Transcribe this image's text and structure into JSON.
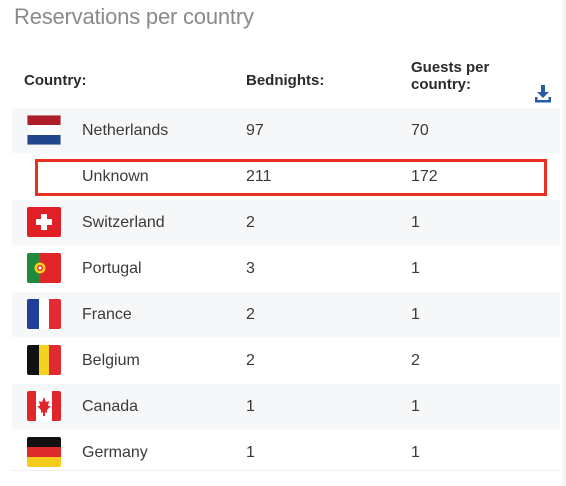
{
  "page": {
    "title": "Reservations per country"
  },
  "table": {
    "headers": {
      "country": "Country:",
      "bednights": "Bednights:",
      "guests": "Guests per country:"
    },
    "rows": [
      {
        "country": "Netherlands",
        "flag": "netherlands-flag-icon",
        "bednights": "97",
        "guests": "70"
      },
      {
        "country": "Unknown",
        "flag": "",
        "bednights": "211",
        "guests": "172"
      },
      {
        "country": "Switzerland",
        "flag": "switzerland-flag-icon",
        "bednights": "2",
        "guests": "1"
      },
      {
        "country": "Portugal",
        "flag": "portugal-flag-icon",
        "bednights": "3",
        "guests": "1"
      },
      {
        "country": "France",
        "flag": "france-flag-icon",
        "bednights": "2",
        "guests": "1"
      },
      {
        "country": "Belgium",
        "flag": "belgium-flag-icon",
        "bednights": "2",
        "guests": "2"
      },
      {
        "country": "Canada",
        "flag": "canada-flag-icon",
        "bednights": "1",
        "guests": "1"
      },
      {
        "country": "Germany",
        "flag": "germany-flag-icon",
        "bednights": "1",
        "guests": "1"
      }
    ]
  },
  "icons": {
    "download": "download-icon"
  },
  "colors": {
    "highlight": "#e8311f",
    "download_icon": "#2a5aa8"
  }
}
